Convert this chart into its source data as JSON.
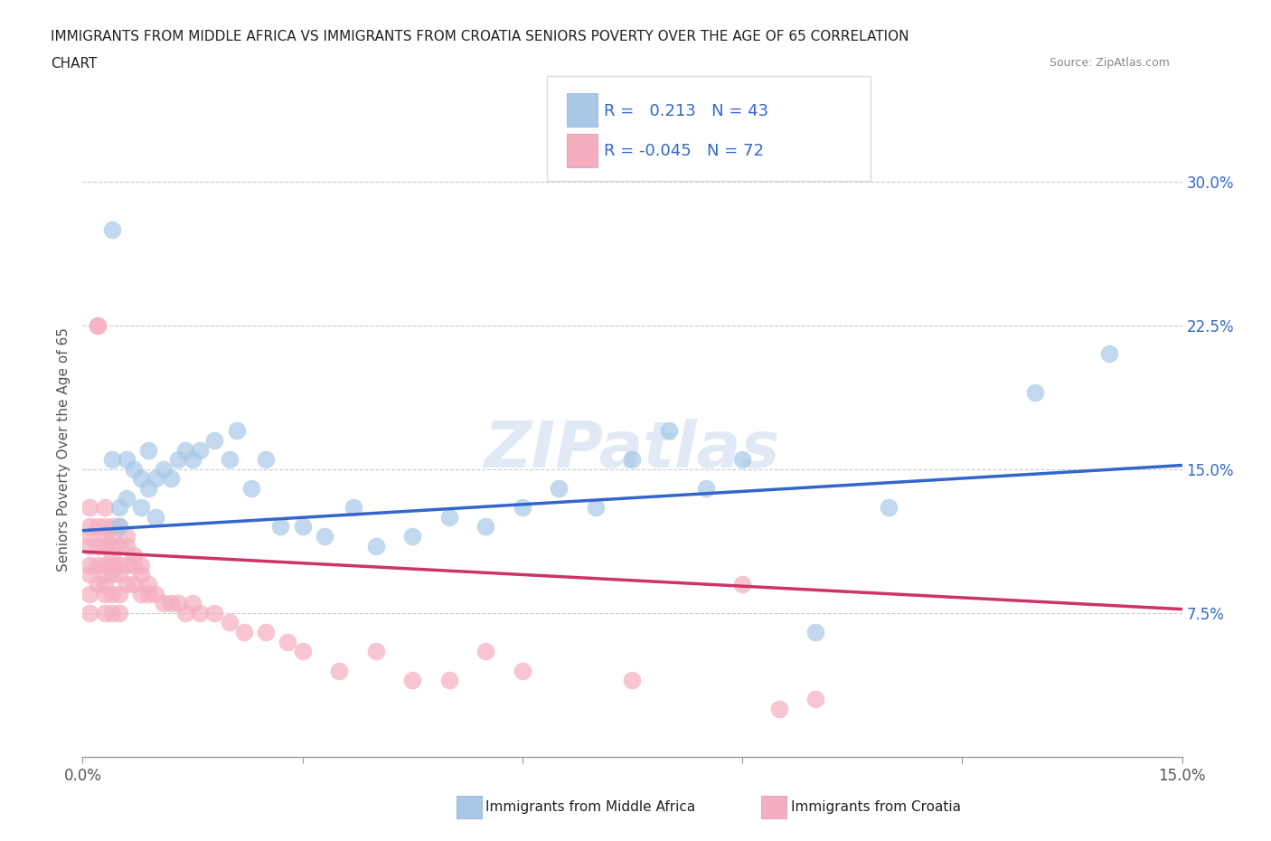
{
  "title_line1": "IMMIGRANTS FROM MIDDLE AFRICA VS IMMIGRANTS FROM CROATIA SENIORS POVERTY OVER THE AGE OF 65 CORRELATION",
  "title_line2": "CHART",
  "source": "Source: ZipAtlas.com",
  "ylabel": "Seniors Poverty Over the Age of 65",
  "xlim": [
    0.0,
    0.15
  ],
  "ylim": [
    0.0,
    0.32
  ],
  "xticks": [
    0.0,
    0.03,
    0.06,
    0.09,
    0.12,
    0.15
  ],
  "xticklabels": [
    "0.0%",
    "",
    "",
    "",
    "",
    "15.0%"
  ],
  "yticks": [
    0.075,
    0.15,
    0.225,
    0.3
  ],
  "yticklabels": [
    "7.5%",
    "15.0%",
    "22.5%",
    "30.0%"
  ],
  "grid_color": "#cccccc",
  "background_color": "#ffffff",
  "blue_color": "#a8c8e8",
  "pink_color": "#f5aec0",
  "blue_line_color": "#3366cc",
  "pink_line_color": "#cc3366",
  "r_blue": 0.213,
  "n_blue": 43,
  "r_pink": -0.045,
  "n_pink": 72,
  "watermark": "ZIPatlas",
  "blue_line_x0": 0.0,
  "blue_line_y0": 0.118,
  "blue_line_x1": 0.15,
  "blue_line_y1": 0.152,
  "pink_line_x0": 0.0,
  "pink_line_y0": 0.107,
  "pink_line_x1": 0.15,
  "pink_line_y1": 0.077,
  "blue_scatter_x": [
    0.004,
    0.004,
    0.005,
    0.005,
    0.006,
    0.006,
    0.007,
    0.008,
    0.008,
    0.009,
    0.009,
    0.01,
    0.01,
    0.011,
    0.012,
    0.013,
    0.014,
    0.015,
    0.016,
    0.018,
    0.02,
    0.021,
    0.023,
    0.025,
    0.027,
    0.03,
    0.033,
    0.037,
    0.04,
    0.045,
    0.05,
    0.055,
    0.06,
    0.065,
    0.07,
    0.075,
    0.08,
    0.085,
    0.09,
    0.1,
    0.11,
    0.13,
    0.14
  ],
  "blue_scatter_y": [
    0.275,
    0.155,
    0.13,
    0.12,
    0.155,
    0.135,
    0.15,
    0.145,
    0.13,
    0.16,
    0.14,
    0.145,
    0.125,
    0.15,
    0.145,
    0.155,
    0.16,
    0.155,
    0.16,
    0.165,
    0.155,
    0.17,
    0.14,
    0.155,
    0.12,
    0.12,
    0.115,
    0.13,
    0.11,
    0.115,
    0.125,
    0.12,
    0.13,
    0.14,
    0.13,
    0.155,
    0.17,
    0.14,
    0.155,
    0.065,
    0.13,
    0.19,
    0.21
  ],
  "pink_scatter_x": [
    0.001,
    0.001,
    0.001,
    0.001,
    0.001,
    0.001,
    0.001,
    0.001,
    0.002,
    0.002,
    0.002,
    0.002,
    0.002,
    0.002,
    0.003,
    0.003,
    0.003,
    0.003,
    0.003,
    0.003,
    0.003,
    0.003,
    0.003,
    0.004,
    0.004,
    0.004,
    0.004,
    0.004,
    0.004,
    0.004,
    0.004,
    0.005,
    0.005,
    0.005,
    0.005,
    0.005,
    0.005,
    0.006,
    0.006,
    0.006,
    0.006,
    0.007,
    0.007,
    0.007,
    0.008,
    0.008,
    0.008,
    0.009,
    0.009,
    0.01,
    0.011,
    0.012,
    0.013,
    0.014,
    0.015,
    0.016,
    0.018,
    0.02,
    0.022,
    0.025,
    0.028,
    0.03,
    0.035,
    0.04,
    0.045,
    0.05,
    0.055,
    0.06,
    0.075,
    0.09,
    0.095,
    0.1
  ],
  "pink_scatter_y": [
    0.13,
    0.12,
    0.115,
    0.11,
    0.1,
    0.095,
    0.085,
    0.075,
    0.225,
    0.225,
    0.12,
    0.11,
    0.1,
    0.09,
    0.13,
    0.12,
    0.115,
    0.11,
    0.1,
    0.095,
    0.09,
    0.085,
    0.075,
    0.12,
    0.115,
    0.11,
    0.105,
    0.1,
    0.095,
    0.085,
    0.075,
    0.12,
    0.11,
    0.1,
    0.095,
    0.085,
    0.075,
    0.115,
    0.11,
    0.1,
    0.09,
    0.105,
    0.1,
    0.09,
    0.1,
    0.095,
    0.085,
    0.09,
    0.085,
    0.085,
    0.08,
    0.08,
    0.08,
    0.075,
    0.08,
    0.075,
    0.075,
    0.07,
    0.065,
    0.065,
    0.06,
    0.055,
    0.045,
    0.055,
    0.04,
    0.04,
    0.055,
    0.045,
    0.04,
    0.09,
    0.025,
    0.03
  ]
}
